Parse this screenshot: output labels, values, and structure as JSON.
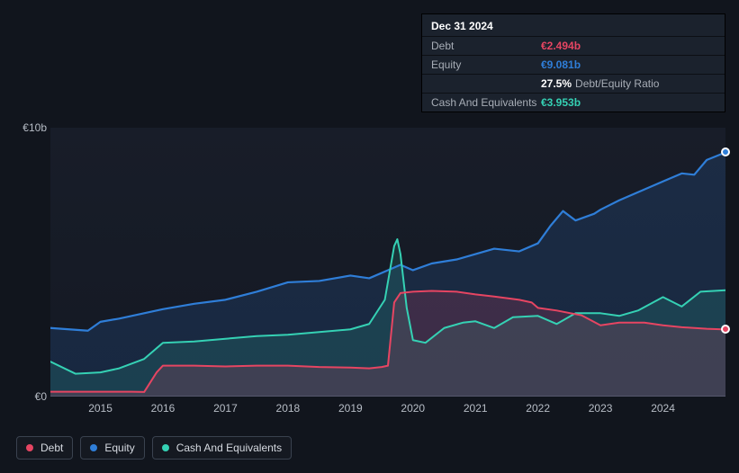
{
  "chart": {
    "type": "area-line",
    "background_color": "#11151d",
    "plot_background": "#171c27",
    "grid_color": "#2a3140",
    "text_color": "#b7bdc6",
    "font_family": "Helvetica, Arial, sans-serif",
    "axis_fontsize": 12,
    "y": {
      "min": 0,
      "max": 10,
      "unit_prefix": "€",
      "unit_suffix": "b",
      "ticks": [
        {
          "v": 0,
          "label": "€0"
        },
        {
          "v": 10,
          "label": "€10b"
        }
      ]
    },
    "x": {
      "min": 2014.2,
      "max": 2025.0,
      "ticks": [
        2015,
        2016,
        2017,
        2018,
        2019,
        2020,
        2021,
        2022,
        2023,
        2024
      ]
    },
    "series": [
      {
        "id": "debt",
        "label": "Debt",
        "color": "#e64562",
        "line_width": 2,
        "fill_opacity": 0.18,
        "has_end_dot": true,
        "points": [
          [
            2014.2,
            0.18
          ],
          [
            2015.0,
            0.18
          ],
          [
            2015.5,
            0.18
          ],
          [
            2015.7,
            0.17
          ],
          [
            2015.9,
            0.9
          ],
          [
            2016.0,
            1.15
          ],
          [
            2016.5,
            1.15
          ],
          [
            2017.0,
            1.12
          ],
          [
            2017.5,
            1.15
          ],
          [
            2018.0,
            1.15
          ],
          [
            2018.5,
            1.1
          ],
          [
            2019.0,
            1.08
          ],
          [
            2019.3,
            1.05
          ],
          [
            2019.5,
            1.1
          ],
          [
            2019.6,
            1.15
          ],
          [
            2019.7,
            3.5
          ],
          [
            2019.8,
            3.85
          ],
          [
            2020.0,
            3.9
          ],
          [
            2020.3,
            3.93
          ],
          [
            2020.7,
            3.9
          ],
          [
            2021.0,
            3.8
          ],
          [
            2021.3,
            3.72
          ],
          [
            2021.7,
            3.6
          ],
          [
            2021.9,
            3.5
          ],
          [
            2022.0,
            3.3
          ],
          [
            2022.3,
            3.2
          ],
          [
            2022.7,
            3.02
          ],
          [
            2023.0,
            2.65
          ],
          [
            2023.3,
            2.75
          ],
          [
            2023.7,
            2.75
          ],
          [
            2024.0,
            2.65
          ],
          [
            2024.3,
            2.58
          ],
          [
            2024.7,
            2.52
          ],
          [
            2025.0,
            2.494
          ]
        ]
      },
      {
        "id": "equity",
        "label": "Equity",
        "color": "#2f7ed8",
        "line_width": 2.2,
        "fill_opacity": 0.16,
        "has_end_dot": true,
        "points": [
          [
            2014.2,
            2.55
          ],
          [
            2014.5,
            2.5
          ],
          [
            2014.8,
            2.45
          ],
          [
            2015.0,
            2.78
          ],
          [
            2015.3,
            2.9
          ],
          [
            2015.7,
            3.1
          ],
          [
            2016.0,
            3.25
          ],
          [
            2016.5,
            3.45
          ],
          [
            2017.0,
            3.6
          ],
          [
            2017.5,
            3.9
          ],
          [
            2018.0,
            4.25
          ],
          [
            2018.5,
            4.3
          ],
          [
            2019.0,
            4.5
          ],
          [
            2019.3,
            4.4
          ],
          [
            2019.6,
            4.7
          ],
          [
            2019.8,
            4.9
          ],
          [
            2020.0,
            4.7
          ],
          [
            2020.3,
            4.95
          ],
          [
            2020.7,
            5.1
          ],
          [
            2021.0,
            5.3
          ],
          [
            2021.3,
            5.5
          ],
          [
            2021.7,
            5.4
          ],
          [
            2022.0,
            5.7
          ],
          [
            2022.2,
            6.35
          ],
          [
            2022.4,
            6.9
          ],
          [
            2022.6,
            6.55
          ],
          [
            2022.9,
            6.8
          ],
          [
            2023.0,
            6.95
          ],
          [
            2023.3,
            7.3
          ],
          [
            2023.5,
            7.5
          ],
          [
            2023.7,
            7.7
          ],
          [
            2024.0,
            8.0
          ],
          [
            2024.3,
            8.3
          ],
          [
            2024.5,
            8.25
          ],
          [
            2024.7,
            8.8
          ],
          [
            2025.0,
            9.081
          ]
        ]
      },
      {
        "id": "cash",
        "label": "Cash And Equivalents",
        "color": "#35d1b4",
        "line_width": 2,
        "fill_opacity": 0.14,
        "has_end_dot": false,
        "points": [
          [
            2014.2,
            1.3
          ],
          [
            2014.6,
            0.85
          ],
          [
            2015.0,
            0.9
          ],
          [
            2015.3,
            1.05
          ],
          [
            2015.7,
            1.4
          ],
          [
            2016.0,
            2.0
          ],
          [
            2016.5,
            2.05
          ],
          [
            2017.0,
            2.15
          ],
          [
            2017.5,
            2.25
          ],
          [
            2018.0,
            2.3
          ],
          [
            2018.5,
            2.4
          ],
          [
            2019.0,
            2.5
          ],
          [
            2019.3,
            2.7
          ],
          [
            2019.55,
            3.6
          ],
          [
            2019.7,
            5.6
          ],
          [
            2019.75,
            5.85
          ],
          [
            2019.8,
            5.3
          ],
          [
            2019.9,
            3.3
          ],
          [
            2020.0,
            2.1
          ],
          [
            2020.2,
            2.0
          ],
          [
            2020.5,
            2.55
          ],
          [
            2020.8,
            2.75
          ],
          [
            2021.0,
            2.8
          ],
          [
            2021.3,
            2.55
          ],
          [
            2021.6,
            2.95
          ],
          [
            2022.0,
            3.0
          ],
          [
            2022.3,
            2.7
          ],
          [
            2022.6,
            3.1
          ],
          [
            2023.0,
            3.1
          ],
          [
            2023.3,
            3.0
          ],
          [
            2023.6,
            3.2
          ],
          [
            2024.0,
            3.7
          ],
          [
            2024.3,
            3.35
          ],
          [
            2024.6,
            3.9
          ],
          [
            2025.0,
            3.953
          ]
        ]
      }
    ],
    "end_marker": {
      "radius": 5,
      "border_color": "#ffffff",
      "border_width": 2
    },
    "legend": {
      "position": "bottom-left",
      "border_color": "#3a424f",
      "text_color": "#d6dae1",
      "bg": "rgba(255,255,255,.02)",
      "fontsize": 12
    }
  },
  "tooltip": {
    "title": "Dec 31 2024",
    "bg": "#1b222d",
    "border": "#000000",
    "label_color": "#a7adb6",
    "rows": [
      {
        "label": "Debt",
        "value": "€2.494b",
        "value_color": "#e64562"
      },
      {
        "label": "Equity",
        "value": "€9.081b",
        "value_color": "#2f7ed8"
      },
      {
        "label": "",
        "value": "27.5%",
        "value_color": "#ffffff",
        "extra": "Debt/Equity Ratio"
      },
      {
        "label": "Cash And Equivalents",
        "value": "€3.953b",
        "value_color": "#35d1b4"
      }
    ]
  }
}
